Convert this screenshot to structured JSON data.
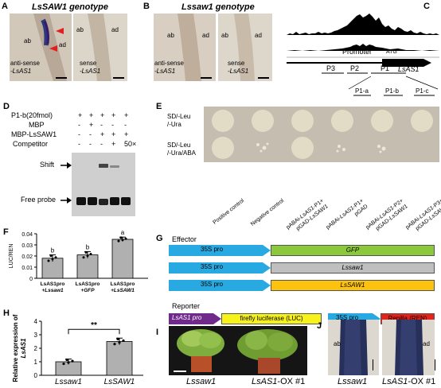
{
  "panel_letters": [
    "A",
    "B",
    "C",
    "D",
    "E",
    "F",
    "G",
    "H",
    "I",
    "J"
  ],
  "panelA": {
    "title": "LsSAW1 genotype",
    "img1": {
      "ab": "ab",
      "ad": "ad",
      "caption1": "anti-sense",
      "caption2": "-LsAS1"
    },
    "img2": {
      "ab": "ab",
      "ad": "ad",
      "caption1": "sense",
      "caption2": "-LsAS1"
    }
  },
  "panelB": {
    "title": "Lssaw1 genotype",
    "img1": {
      "ab": "ab",
      "ad": "ad",
      "caption1": "anti-sense",
      "caption2": "-LsAS1"
    },
    "img2": {
      "ab": "ab",
      "ad": "ad",
      "caption1": "sense",
      "caption2": "-LsAS1"
    }
  },
  "panelC": {
    "promoter": "Promoter",
    "atg": "ATG",
    "gene": "LsAS1",
    "fragments": [
      "P3",
      "P2",
      "P1"
    ],
    "subfragments": [
      "P1-a",
      "P1-b",
      "P1-c"
    ]
  },
  "panelD": {
    "rows": [
      {
        "label": "P1-b(20fmol)",
        "vals": [
          "+",
          "+",
          "+",
          "+",
          "+"
        ]
      },
      {
        "label": "MBP",
        "vals": [
          "-",
          "+",
          "-",
          "-",
          "-"
        ]
      },
      {
        "label": "MBP-LsSAW1",
        "vals": [
          "-",
          "-",
          "+",
          "+",
          "+"
        ]
      },
      {
        "label": "Competitor",
        "vals": [
          "-",
          "-",
          "-",
          "+",
          "50×"
        ]
      }
    ],
    "shift": "Shift",
    "free_probe": "Free probe"
  },
  "panelE": {
    "row1": "SD/-Leu\n/-Ura",
    "row1_a": "SD/-Leu",
    "row1_b": "/-Ura",
    "row2_a": "SD/-Leu",
    "row2_b": "/-Ura/ABA",
    "columns": [
      {
        "l1": "Positive control",
        "l2": ""
      },
      {
        "l1": "Negative control",
        "l2": ""
      },
      {
        "l1": "pABAi-LsAS1-P1+",
        "l2": "pGAD-LsSAW1"
      },
      {
        "l1": "pABAi-LsAS1-P1+",
        "l2": "pGAD"
      },
      {
        "l1": "pABAi-LsAS1-P2+",
        "l2": "pGAD-LsSAW1"
      },
      {
        "l1": "pABAi-LsAS1-P3+",
        "l2": "pGAD-LsSAW1"
      }
    ]
  },
  "panelF": {
    "chart_data": {
      "type": "bar",
      "ylabel": "LUC/REN",
      "ylim": [
        0,
        0.04
      ],
      "yticks": [
        "0",
        "0.01",
        "0.02",
        "0.03",
        "0.04"
      ],
      "categories": [
        {
          "l1": "LsAS1pro",
          "l2": "+Lssaw1"
        },
        {
          "l1": "LsAS1pro",
          "l2": "+GFP"
        },
        {
          "l1": "LsAS1pro",
          "l2": "+LsSAW1"
        }
      ],
      "values": [
        0.018,
        0.021,
        0.035
      ],
      "errors": [
        0.003,
        0.003,
        0.002
      ],
      "letters": [
        "b",
        "b",
        "a"
      ],
      "colors": [
        "#b0b0b0",
        "#b0b0b0",
        "#b0b0b0"
      ]
    }
  },
  "panelG": {
    "effector": "Effector",
    "reporter": "Reporter",
    "promoter35s": "35S pro",
    "effectors": [
      "GFP",
      "Lssaw1",
      "LsSAW1"
    ],
    "rep_pro": "LsAS1 pro",
    "rep_luc": "firefly luciferase (LUC)",
    "rep_35s": "35S pro",
    "rep_ren": "Renilla (REN)",
    "colors": {
      "blue": "#29a9e1",
      "green": "#8cc83c",
      "grey": "#bfbfbf",
      "yellow": "#fcc20e",
      "purple": "#702a8c",
      "lyellow": "#f6f21a",
      "red": "#e5231b"
    }
  },
  "panelH": {
    "chart_data": {
      "type": "bar",
      "ylabel": "Relative expression of",
      "ylabel_gene": "LsAS1",
      "ylim": [
        0,
        4
      ],
      "yticks": [
        "0",
        "1",
        "2",
        "3",
        "4"
      ],
      "categories": [
        "Lssaw1",
        "LsSAW1"
      ],
      "values": [
        1.0,
        2.5
      ],
      "errors": [
        0.2,
        0.25
      ],
      "significance": "**",
      "colors": [
        "#b0b0b0",
        "#b0b0b0"
      ]
    }
  },
  "panelI": {
    "label1": "Lssaw1",
    "label2a": "LsAS1",
    "label2b": "-OX #1"
  },
  "panelJ": {
    "label1": "Lssaw1",
    "label2a": "LsAS1",
    "label2b": "-OX #1",
    "ab": "ab",
    "ad": "ad"
  }
}
